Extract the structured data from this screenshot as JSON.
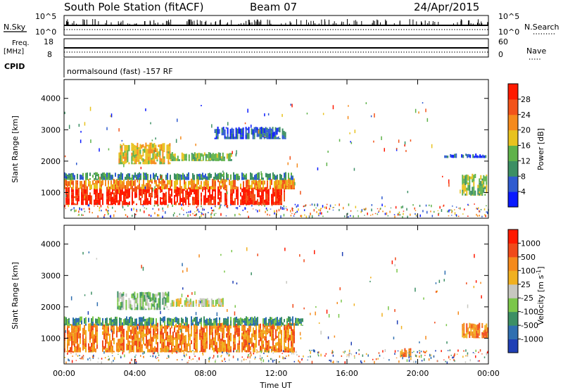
{
  "header": {
    "station": "South Pole Station (fitACF)",
    "beam": "Beam 07",
    "date": "24/Apr/2015"
  },
  "top_panels": {
    "nsky_label": "N.Sky",
    "nsearch_label": "N.Search",
    "nsky_ticks": [
      "10^5",
      "10^0"
    ],
    "nsearch_ticks": [
      "10^5",
      "10^0"
    ],
    "freq_label": "Freq.",
    "freq_unit": "[MHz]",
    "freq_ticks": [
      "18",
      "8"
    ],
    "nave_label": "Nave",
    "nave_ticks": [
      "60",
      "0"
    ],
    "cpid_label": "CPID",
    "cpid_text": "normalsound (fast) -157 RF"
  },
  "chart_data": [
    {
      "type": "heatmap",
      "ylabel": "Slant Range [km]",
      "xlabel": "",
      "x_ticks": [
        "00:00",
        "04:00",
        "08:00",
        "12:00",
        "16:00",
        "20:00",
        "00:00"
      ],
      "y_ticks": [
        1000,
        2000,
        3000,
        4000
      ],
      "ylim": [
        180,
        4600
      ],
      "xlim_hours": [
        0,
        24
      ],
      "colorbar": {
        "label": "Power [dB]",
        "ticks": [
          "4",
          "8",
          "12",
          "16",
          "20",
          "24",
          "28"
        ],
        "colors": [
          "#0a1aff",
          "#2f5bd0",
          "#3c8f64",
          "#5fb24a",
          "#e8c21e",
          "#f58a1c",
          "#f2531a",
          "#ff1a00"
        ]
      },
      "regions": [
        {
          "t": [
            0.0,
            12.5
          ],
          "r": [
            600,
            1200
          ],
          "level": 7
        },
        {
          "t": [
            0.0,
            13.0
          ],
          "r": [
            1100,
            1450
          ],
          "level": 5
        },
        {
          "t": [
            0.0,
            13.0
          ],
          "r": [
            1400,
            1650
          ],
          "level": 2
        },
        {
          "t": [
            3.0,
            6.0
          ],
          "r": [
            1900,
            2600
          ],
          "level": 4
        },
        {
          "t": [
            6.0,
            9.5
          ],
          "r": [
            2000,
            2300
          ],
          "level": 3
        },
        {
          "t": [
            8.5,
            12.5
          ],
          "r": [
            2700,
            3100
          ],
          "level": 1
        },
        {
          "t": [
            22.5,
            24.0
          ],
          "r": [
            900,
            1600
          ],
          "level": 3
        },
        {
          "t": [
            21.5,
            24.0
          ],
          "r": [
            2100,
            2250
          ],
          "level": 1
        }
      ]
    },
    {
      "type": "heatmap",
      "ylabel": "Slant Range [km]",
      "xlabel": "Time UT",
      "x_ticks": [
        "00:00",
        "04:00",
        "08:00",
        "12:00",
        "16:00",
        "20:00",
        "00:00"
      ],
      "y_ticks": [
        1000,
        2000,
        3000,
        4000
      ],
      "ylim": [
        180,
        4600
      ],
      "xlim_hours": [
        0,
        24
      ],
      "colorbar": {
        "label": "Velocity [m s^-1]",
        "ticks": [
          "1000",
          "500",
          "100",
          "25",
          "-25",
          "-100",
          "-500",
          "-1000"
        ],
        "colors": [
          "#1f3fb5",
          "#2f6fb0",
          "#3c8f64",
          "#7bc64a",
          "#c7c7c0",
          "#f0b020",
          "#f58a1c",
          "#f04a1a",
          "#ff1a00"
        ]
      },
      "regions": [
        {
          "t": [
            0.0,
            13.0
          ],
          "r": [
            550,
            1500
          ],
          "level": 6
        },
        {
          "t": [
            0.0,
            13.5
          ],
          "r": [
            1400,
            1700
          ],
          "level": 2
        },
        {
          "t": [
            3.0,
            6.0
          ],
          "r": [
            1900,
            2500
          ],
          "level": 3
        },
        {
          "t": [
            6.0,
            9.0
          ],
          "r": [
            2000,
            2300
          ],
          "level": 4
        },
        {
          "t": [
            22.5,
            24.0
          ],
          "r": [
            1000,
            1500
          ],
          "level": 6
        },
        {
          "t": [
            19.0,
            19.6
          ],
          "r": [
            400,
            700
          ],
          "level": 6
        }
      ]
    }
  ]
}
